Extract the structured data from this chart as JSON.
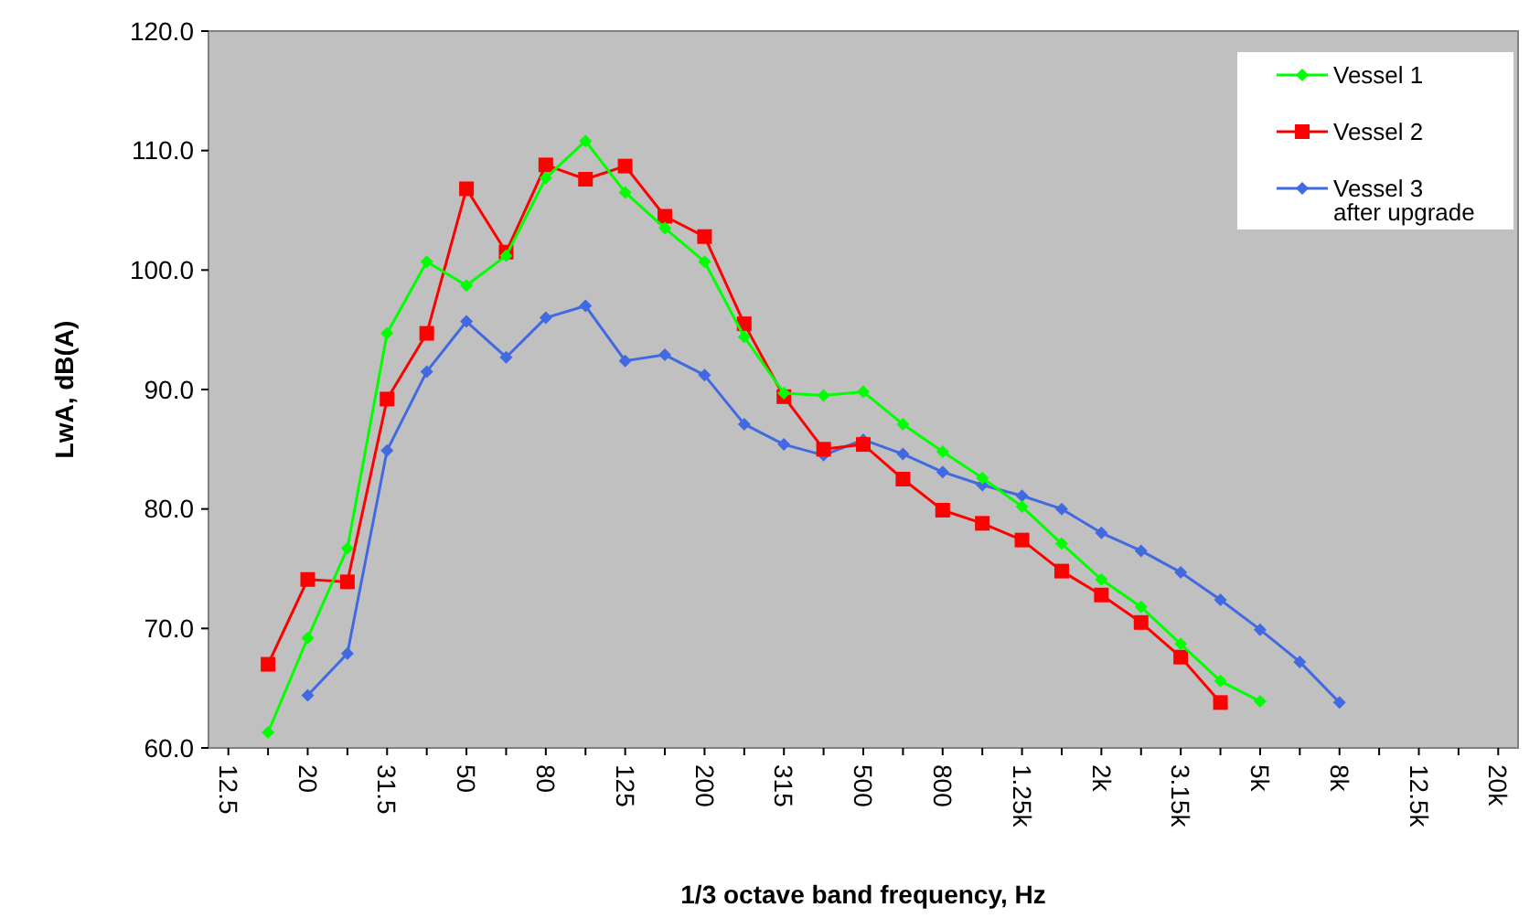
{
  "chart_data": {
    "type": "line",
    "xlabel": "1/3 octave band frequency, Hz",
    "ylabel": "LwA, dB(A)",
    "categories": [
      "12.5",
      null,
      "20",
      null,
      "31.5",
      null,
      "50",
      null,
      "80",
      null,
      "125",
      null,
      "200",
      null,
      "315",
      null,
      "500",
      null,
      "800",
      null,
      "1.25k",
      null,
      "2k",
      null,
      "3.15k",
      null,
      "5k",
      null,
      "8k",
      null,
      "12.5k",
      null,
      "20k"
    ],
    "ylim": [
      60,
      120
    ],
    "yticks": [
      {
        "value": 60,
        "label": "60.0"
      },
      {
        "value": 70,
        "label": "70.0"
      },
      {
        "value": 80,
        "label": "80.0"
      },
      {
        "value": 90,
        "label": "90.0"
      },
      {
        "value": 100,
        "label": "100.0"
      },
      {
        "value": 110,
        "label": "110.0"
      },
      {
        "value": 120,
        "label": "120.0"
      }
    ],
    "grid": false,
    "legend": "top right",
    "series": [
      {
        "name": "Vessel 1",
        "color": "#00ff00",
        "marker": "diamond",
        "values": [
          null,
          61.3,
          69.2,
          76.7,
          94.7,
          100.7,
          98.7,
          101.2,
          107.7,
          110.8,
          106.5,
          103.5,
          100.7,
          94.4,
          89.7,
          89.5,
          89.8,
          87.1,
          84.8,
          82.6,
          80.2,
          77.1,
          74.1,
          71.8,
          68.7,
          65.6,
          63.9,
          null,
          null,
          null,
          null,
          null,
          null
        ]
      },
      {
        "name": "Vessel 2",
        "color": "#ff0000",
        "marker": "square",
        "values": [
          null,
          67.0,
          74.1,
          73.9,
          89.2,
          94.7,
          106.8,
          101.5,
          108.8,
          107.6,
          108.7,
          104.5,
          102.8,
          95.5,
          89.4,
          85.0,
          85.4,
          82.5,
          79.9,
          78.8,
          77.4,
          74.8,
          72.8,
          70.5,
          67.6,
          63.8,
          null,
          null,
          null,
          null,
          null,
          null,
          null
        ]
      },
      {
        "name": "Vessel 3\nafter upgrade",
        "color": "#4169e1",
        "marker": "diamond",
        "values": [
          null,
          null,
          64.4,
          67.9,
          84.9,
          91.5,
          95.7,
          92.7,
          96.0,
          97.0,
          92.4,
          92.9,
          91.2,
          87.1,
          85.4,
          84.5,
          85.8,
          84.6,
          83.1,
          82.0,
          81.1,
          80.0,
          78.0,
          76.5,
          74.7,
          72.4,
          69.9,
          67.2,
          63.8,
          null,
          null,
          null,
          null
        ]
      }
    ]
  }
}
